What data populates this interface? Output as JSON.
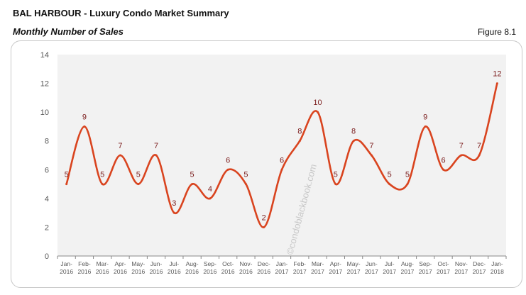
{
  "header": {
    "title": "BAL HARBOUR - Luxury Condo Market Summary",
    "subtitle": "Monthly Number of Sales",
    "figure": "Figure 8.1"
  },
  "watermark": "©condoblackbook.com",
  "colors": {
    "line": "#d9441f",
    "labels": "#7a1b1b",
    "plot_bg": "#f2f2f2",
    "axis_text": "#595959"
  },
  "chart_data": {
    "type": "line",
    "smooth": true,
    "categories": [
      [
        "Jan-",
        "2016"
      ],
      [
        "Feb-",
        "2016"
      ],
      [
        "Mar-",
        "2016"
      ],
      [
        "Apr-",
        "2016"
      ],
      [
        "May-",
        "2016"
      ],
      [
        "Jun-",
        "2016"
      ],
      [
        "Jul-",
        "2016"
      ],
      [
        "Aug-",
        "2016"
      ],
      [
        "Sep-",
        "2016"
      ],
      [
        "Oct-",
        "2016"
      ],
      [
        "Nov-",
        "2016"
      ],
      [
        "Dec-",
        "2016"
      ],
      [
        "Jan-",
        "2017"
      ],
      [
        "Feb-",
        "2017"
      ],
      [
        "Mar-",
        "2017"
      ],
      [
        "Apr-",
        "2017"
      ],
      [
        "May-",
        "2017"
      ],
      [
        "Jun-",
        "2017"
      ],
      [
        "Jul-",
        "2017"
      ],
      [
        "Aug-",
        "2017"
      ],
      [
        "Sep-",
        "2017"
      ],
      [
        "Oct-",
        "2017"
      ],
      [
        "Nov-",
        "2017"
      ],
      [
        "Dec-",
        "2017"
      ],
      [
        "Jan-",
        "2018"
      ]
    ],
    "values": [
      5,
      9,
      5,
      7,
      5,
      7,
      3,
      5,
      4,
      6,
      5,
      2,
      6,
      8,
      10,
      5,
      8,
      7,
      5,
      5,
      9,
      6,
      7,
      7,
      12
    ],
    "ylim": [
      0,
      14
    ],
    "yticks": [
      0,
      2,
      4,
      6,
      8,
      10,
      12,
      14
    ],
    "grid": false,
    "data_labels": true
  }
}
